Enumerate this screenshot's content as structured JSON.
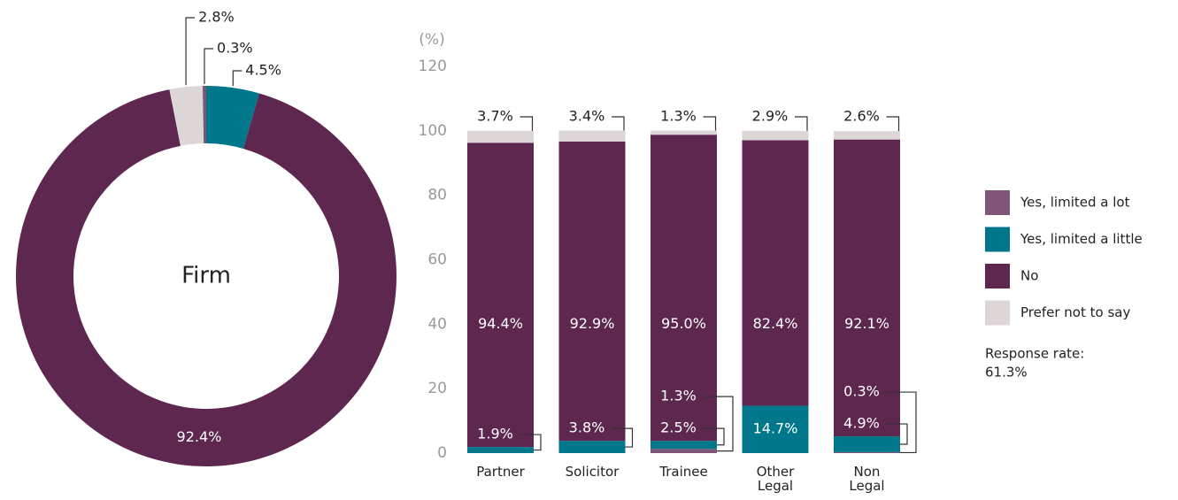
{
  "chart_data": [
    {
      "type": "pie",
      "title": "Firm",
      "values": [
        4.5,
        92.4,
        2.8,
        0.3
      ],
      "value_labels": [
        "4.5%",
        "92.4%",
        "2.8%",
        "0.3%"
      ],
      "colors": [
        "#00778b",
        "#5e2750",
        "#dcd6d7",
        "#7f5479"
      ]
    },
    {
      "type": "bar",
      "stacked": true,
      "ylabel": "(%)",
      "categories": [
        "Partner",
        "Solicitor",
        "Trainee",
        "Other Legal",
        "Non Legal"
      ],
      "series": [
        {
          "name": "Yes, limited a lot",
          "color": "#7f5479",
          "values": [
            0,
            0,
            1.3,
            0,
            0.3
          ],
          "value_labels": [
            null,
            null,
            "1.3%",
            null,
            "0.3%"
          ]
        },
        {
          "name": "Yes, limited a little",
          "color": "#00778b",
          "values": [
            1.9,
            3.8,
            2.5,
            14.7,
            4.9
          ],
          "value_labels": [
            "1.9%",
            "3.8%",
            "2.5%",
            "14.7%",
            "4.9%"
          ]
        },
        {
          "name": "No",
          "color": "#5e2750",
          "values": [
            94.4,
            92.9,
            95.0,
            82.4,
            92.1
          ],
          "value_labels": [
            "94.4%",
            "92.9%",
            "95.0%",
            "82.4%",
            "92.1%"
          ]
        },
        {
          "name": "Prefer not to say",
          "color": "#dcd6d7",
          "values": [
            3.7,
            3.4,
            1.3,
            2.9,
            2.6
          ],
          "value_labels": [
            "3.7%",
            "3.4%",
            "1.3%",
            "2.9%",
            "2.6%"
          ]
        }
      ],
      "ylim": [
        0,
        120
      ],
      "yticks": [
        0,
        20,
        40,
        60,
        80,
        100,
        120
      ],
      "legend": "right",
      "annotations": [
        "Response rate:",
        "61.3%"
      ]
    }
  ]
}
